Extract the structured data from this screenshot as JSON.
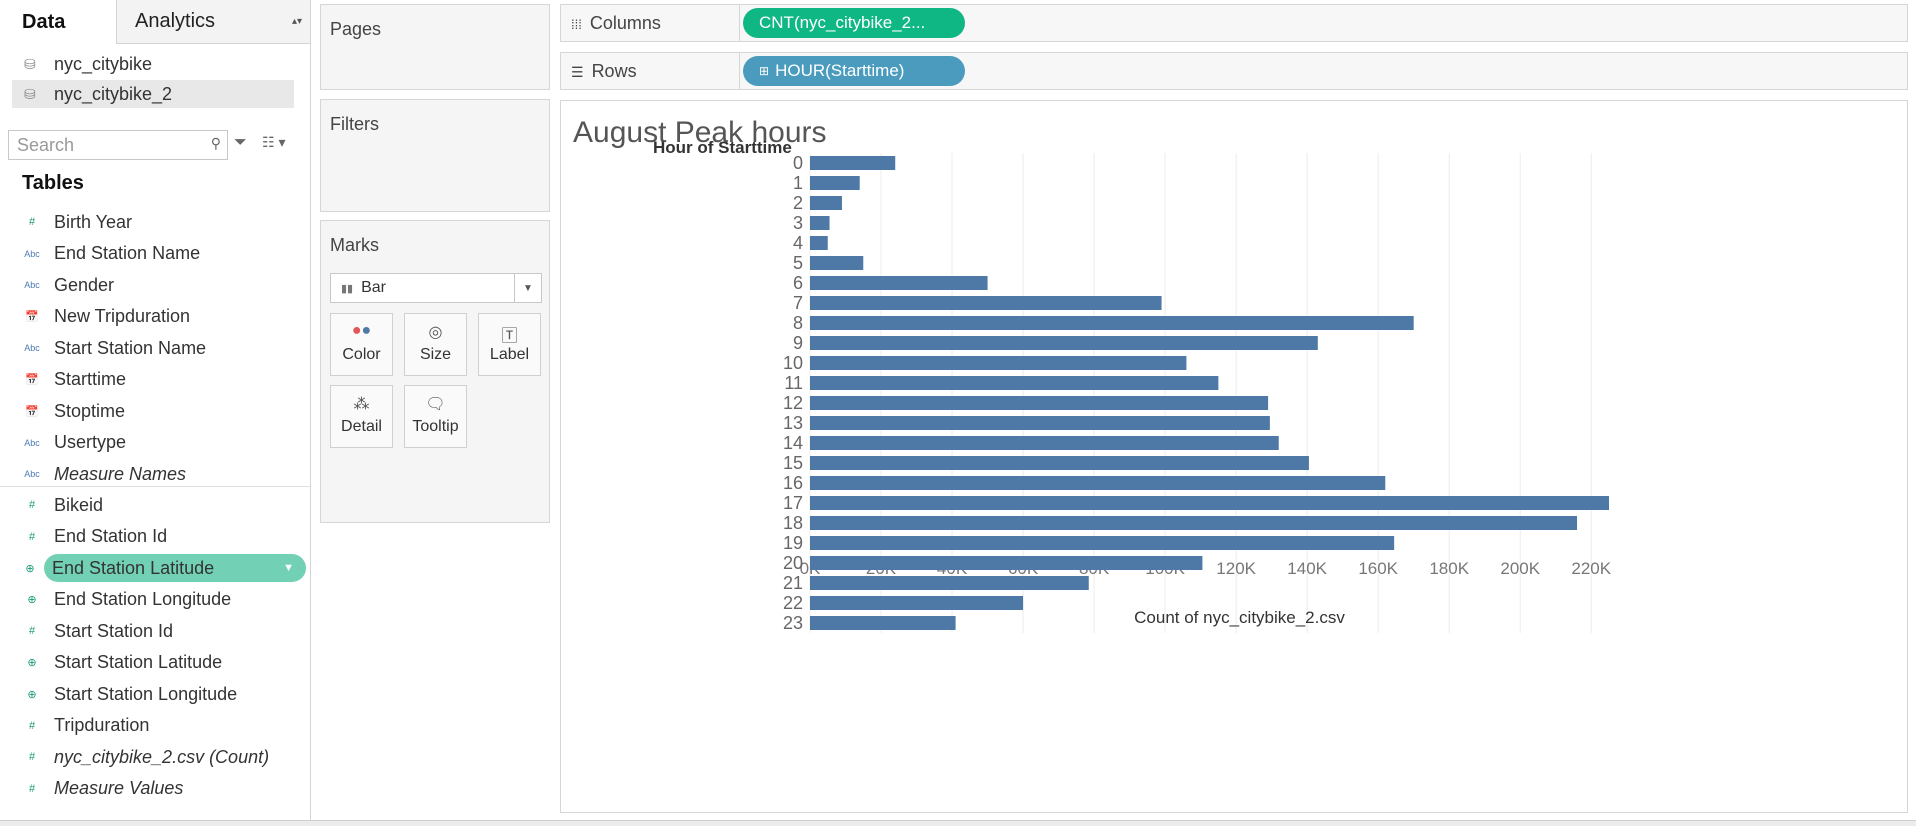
{
  "left_pane": {
    "tabs": [
      "Data",
      "Analytics"
    ],
    "datasources": [
      "nyc_citybike",
      "nyc_citybike_2"
    ],
    "search_placeholder": "Search",
    "tables_heading": "Tables",
    "dimensions": [
      {
        "label": "Birth Year",
        "type": "#"
      },
      {
        "label": "End Station Name",
        "type": "Abc"
      },
      {
        "label": "Gender",
        "type": "Abc"
      },
      {
        "label": "New Tripduration",
        "type": "date"
      },
      {
        "label": "Start Station Name",
        "type": "Abc"
      },
      {
        "label": "Starttime",
        "type": "date"
      },
      {
        "label": "Stoptime",
        "type": "date"
      },
      {
        "label": "Usertype",
        "type": "Abc"
      },
      {
        "label": "Measure Names",
        "type": "Abc"
      }
    ],
    "measures": [
      {
        "label": "Bikeid",
        "type": "#"
      },
      {
        "label": "End Station Id",
        "type": "#"
      },
      {
        "label": "End Station Latitude",
        "type": "geo"
      },
      {
        "label": "End Station Longitude",
        "type": "geo"
      },
      {
        "label": "Start Station Id",
        "type": "#"
      },
      {
        "label": "Start Station Latitude",
        "type": "geo"
      },
      {
        "label": "Start Station Longitude",
        "type": "geo"
      },
      {
        "label": "Tripduration",
        "type": "#"
      },
      {
        "label": "nyc_citybike_2.csv (Count)",
        "type": "#"
      },
      {
        "label": "Measure Values",
        "type": "#"
      }
    ]
  },
  "cards": {
    "pages": "Pages",
    "filters": "Filters",
    "marks": "Marks",
    "mark_type": "Bar",
    "mark_buttons": [
      "Color",
      "Size",
      "Label",
      "Detail",
      "Tooltip"
    ]
  },
  "shelves": {
    "columns_label": "Columns",
    "columns_pill": "CNT(nyc_citybike_2...",
    "rows_label": "Rows",
    "rows_pill": "HOUR(Starttime)"
  },
  "colors": {
    "bar": "#4e79a7",
    "pill_columns": "#0fb784",
    "pill_rows": "#4a9bbd",
    "highlight_field": "#72d1b5"
  },
  "chart_data": {
    "type": "bar",
    "orientation": "horizontal",
    "title": "August Peak hours",
    "ylabel": "Hour of Starttime",
    "xlabel": "Count of nyc_citybike_2.csv",
    "categories": [
      "0",
      "1",
      "2",
      "3",
      "4",
      "5",
      "6",
      "7",
      "8",
      "9",
      "10",
      "11",
      "12",
      "13",
      "14",
      "15",
      "16",
      "17",
      "18",
      "19",
      "20",
      "21",
      "22",
      "23"
    ],
    "values": [
      24000,
      14000,
      9000,
      5500,
      5000,
      15000,
      50000,
      99000,
      170000,
      143000,
      106000,
      115000,
      129000,
      129500,
      132000,
      140500,
      162000,
      225000,
      216000,
      164500,
      110500,
      78500,
      60000,
      41000
    ],
    "xlim": [
      0,
      230000
    ],
    "xticks": [
      0,
      20000,
      40000,
      60000,
      80000,
      100000,
      120000,
      140000,
      160000,
      180000,
      200000,
      220000
    ],
    "xtick_labels": [
      "0K",
      "20K",
      "40K",
      "60K",
      "80K",
      "100K",
      "120K",
      "140K",
      "160K",
      "180K",
      "200K",
      "220K"
    ],
    "grid": "vertical"
  }
}
